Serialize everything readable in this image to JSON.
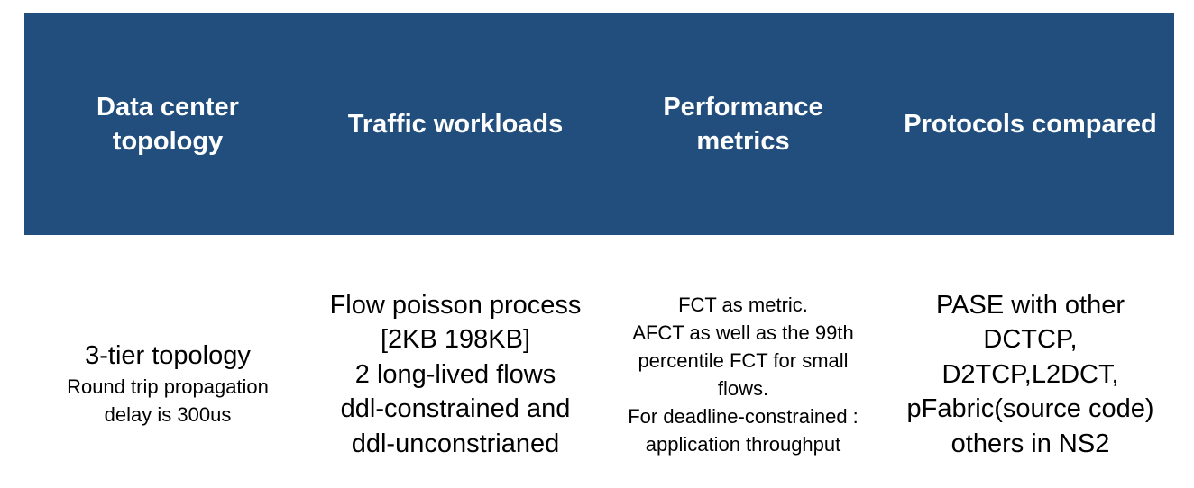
{
  "headers": [
    [
      "Data center",
      "topology"
    ],
    [
      "Traffic workloads"
    ],
    [
      "Performance",
      "metrics"
    ],
    [
      "Protocols compared"
    ]
  ],
  "col1": {
    "lines_large": [
      "3-tier topology"
    ],
    "lines_small": [
      "Round trip propagation",
      "delay is 300us"
    ]
  },
  "col2": {
    "lines": [
      "Flow poisson process",
      "[2KB 198KB]",
      "2 long-lived flows",
      "ddl-constrained and",
      "ddl-unconstrianed"
    ]
  },
  "col3": {
    "lines": [
      "FCT as metric.",
      "AFCT as well as the 99th",
      "percentile FCT for small",
      "flows.",
      "For deadline-constrained :",
      "application throughput"
    ]
  },
  "col4": {
    "lines": [
      "PASE with other",
      "DCTCP,",
      "D2TCP,L2DCT,",
      "pFabric(source code)",
      "others in NS2"
    ]
  },
  "colors": {
    "header_bg": "#214e7c",
    "header_text": "#ffffff",
    "body_text": "#000000"
  }
}
